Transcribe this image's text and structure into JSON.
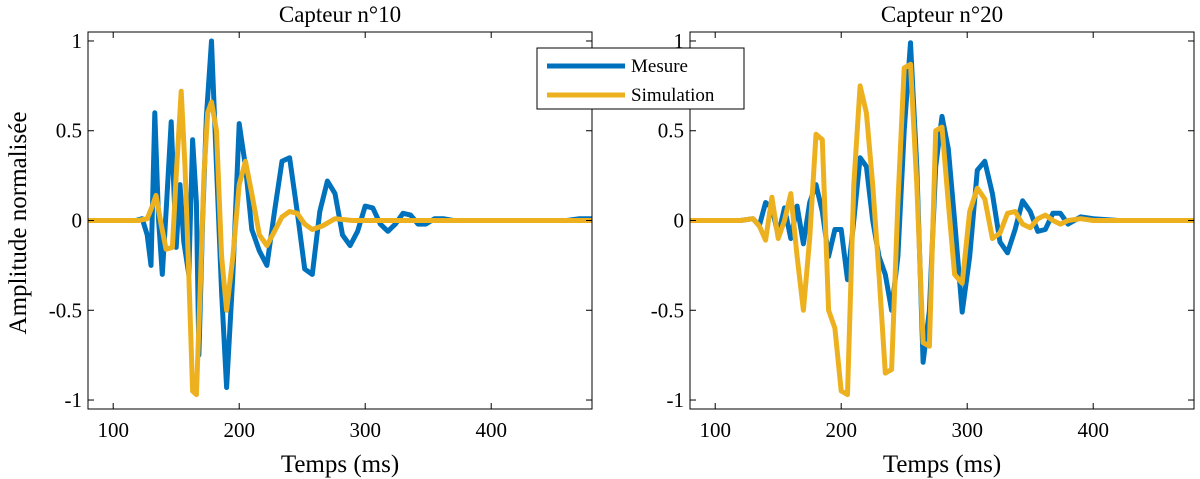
{
  "figure": {
    "ylabel": "Amplitude normalisée",
    "legend": {
      "placement": "top-center",
      "entries": [
        {
          "name": "Mesure",
          "color": "#0072BD"
        },
        {
          "name": "Simulation",
          "color": "#EDB120"
        }
      ]
    }
  },
  "chart_data": [
    {
      "type": "line",
      "title": "Capteur n°10",
      "xlabel": "Temps (ms)",
      "ylabel": "Amplitude normalisée",
      "xlim": [
        80,
        480
      ],
      "ylim": [
        -1.05,
        1.05
      ],
      "xticks": [
        100,
        200,
        300,
        400
      ],
      "yticks": [
        -1,
        -0.5,
        0,
        0.5,
        1
      ],
      "xtick_labels": [
        "100",
        "200",
        "300",
        "400"
      ],
      "ytick_labels": [
        "-1",
        "-0.5",
        "0",
        "0.5",
        "1"
      ],
      "grid": false,
      "series": [
        {
          "name": "Mesure",
          "color": "#0072BD",
          "x": [
            80,
            100,
            118,
            123,
            127,
            130,
            133,
            136,
            139,
            142,
            146,
            150,
            153,
            156,
            160,
            163,
            166,
            168,
            171,
            174,
            178,
            182,
            186,
            190,
            195,
            200,
            205,
            210,
            216,
            222,
            228,
            234,
            240,
            246,
            252,
            258,
            264,
            270,
            276,
            282,
            288,
            294,
            300,
            306,
            312,
            318,
            324,
            330,
            336,
            342,
            348,
            355,
            362,
            370,
            380,
            400,
            420,
            440,
            460,
            470,
            480
          ],
          "y": [
            0,
            0,
            0,
            0.01,
            -0.08,
            -0.25,
            0.6,
            0.0,
            -0.3,
            0.05,
            0.55,
            -0.15,
            0.2,
            -0.12,
            -0.3,
            0.45,
            0.1,
            -0.75,
            0.02,
            0.58,
            1.0,
            0.3,
            -0.4,
            -0.93,
            -0.3,
            0.54,
            0.3,
            -0.05,
            -0.17,
            -0.25,
            0.05,
            0.33,
            0.35,
            0.05,
            -0.27,
            -0.3,
            0.05,
            0.22,
            0.15,
            -0.08,
            -0.14,
            -0.06,
            0.08,
            0.07,
            -0.02,
            -0.06,
            -0.02,
            0.04,
            0.03,
            -0.02,
            -0.02,
            0.01,
            0.01,
            0,
            0,
            0,
            0,
            0,
            0,
            0.01,
            0.01
          ]
        },
        {
          "name": "Simulation",
          "color": "#EDB120",
          "x": [
            80,
            100,
            120,
            127,
            131,
            134,
            138,
            142,
            147,
            150,
            154,
            157,
            160,
            163,
            166,
            169,
            172,
            175,
            178,
            182,
            186,
            190,
            195,
            200,
            205,
            210,
            216,
            222,
            228,
            234,
            240,
            246,
            252,
            258,
            266,
            276,
            290,
            310,
            340,
            380,
            430,
            480
          ],
          "y": [
            0,
            0,
            0,
            0.01,
            0.08,
            0.14,
            -0.02,
            -0.16,
            -0.15,
            0.25,
            0.72,
            0.3,
            -0.3,
            -0.95,
            -0.97,
            -0.4,
            0.25,
            0.6,
            0.66,
            0.5,
            -0.2,
            -0.5,
            -0.2,
            0.2,
            0.33,
            0.15,
            -0.08,
            -0.14,
            -0.06,
            0.02,
            0.05,
            0.04,
            -0.02,
            -0.05,
            -0.03,
            0.01,
            0,
            0,
            0,
            0,
            0,
            0
          ]
        }
      ]
    },
    {
      "type": "line",
      "title": "Capteur n°20",
      "xlabel": "Temps (ms)",
      "xlim": [
        80,
        480
      ],
      "ylim": [
        -1.05,
        1.05
      ],
      "xticks": [
        100,
        200,
        300,
        400
      ],
      "yticks": [
        -1,
        -0.5,
        0,
        0.5,
        1
      ],
      "xtick_labels": [
        "100",
        "200",
        "300",
        "400"
      ],
      "ytick_labels": [
        "-1",
        "-0.5",
        "0",
        "0.5",
        "1"
      ],
      "grid": false,
      "series": [
        {
          "name": "Mesure",
          "color": "#0072BD",
          "x": [
            80,
            100,
            120,
            130,
            135,
            140,
            145,
            150,
            155,
            160,
            165,
            170,
            175,
            180,
            185,
            190,
            195,
            200,
            205,
            210,
            215,
            220,
            225,
            230,
            235,
            240,
            245,
            250,
            255,
            260,
            265,
            270,
            275,
            280,
            285,
            290,
            296,
            302,
            308,
            314,
            320,
            326,
            332,
            338,
            344,
            350,
            356,
            362,
            368,
            374,
            380,
            390,
            400,
            420,
            440,
            460,
            480
          ],
          "y": [
            0,
            0,
            0,
            0.01,
            -0.03,
            0.1,
            0.07,
            -0.08,
            0.07,
            -0.1,
            0.08,
            -0.13,
            0.1,
            0.2,
            0.05,
            -0.2,
            -0.05,
            -0.05,
            -0.33,
            0.0,
            0.35,
            0.3,
            0.0,
            -0.2,
            -0.3,
            -0.5,
            -0.2,
            0.5,
            0.99,
            0.3,
            -0.79,
            -0.5,
            0.3,
            0.58,
            0.4,
            0.0,
            -0.51,
            -0.2,
            0.28,
            0.33,
            0.15,
            -0.12,
            -0.18,
            -0.05,
            0.11,
            0.05,
            -0.06,
            -0.05,
            0.04,
            0.04,
            -0.02,
            0.02,
            0.01,
            0,
            0,
            0,
            0
          ]
        },
        {
          "name": "Simulation",
          "color": "#EDB120",
          "x": [
            80,
            110,
            120,
            130,
            135,
            140,
            145,
            150,
            155,
            160,
            165,
            170,
            175,
            180,
            185,
            190,
            195,
            200,
            205,
            210,
            215,
            220,
            225,
            230,
            235,
            240,
            245,
            250,
            255,
            260,
            265,
            270,
            275,
            280,
            285,
            290,
            296,
            302,
            308,
            314,
            320,
            326,
            332,
            338,
            344,
            350,
            356,
            362,
            368,
            374,
            380,
            390,
            400,
            420,
            440,
            460,
            480
          ],
          "y": [
            0,
            0,
            0,
            0.01,
            -0.03,
            -0.11,
            0.13,
            -0.1,
            0.0,
            0.15,
            -0.2,
            -0.5,
            -0.1,
            0.48,
            0.45,
            -0.5,
            -0.6,
            -0.95,
            -0.97,
            0.2,
            0.75,
            0.6,
            0.2,
            -0.3,
            -0.85,
            -0.83,
            0.1,
            0.85,
            0.87,
            0.2,
            -0.68,
            -0.7,
            0.5,
            0.52,
            0.1,
            -0.3,
            -0.35,
            0.05,
            0.18,
            0.12,
            -0.1,
            -0.07,
            0.04,
            0.05,
            -0.02,
            -0.04,
            0.01,
            0.03,
            0.0,
            -0.02,
            0.0,
            0.01,
            0,
            0,
            0,
            0,
            0
          ]
        }
      ]
    }
  ]
}
